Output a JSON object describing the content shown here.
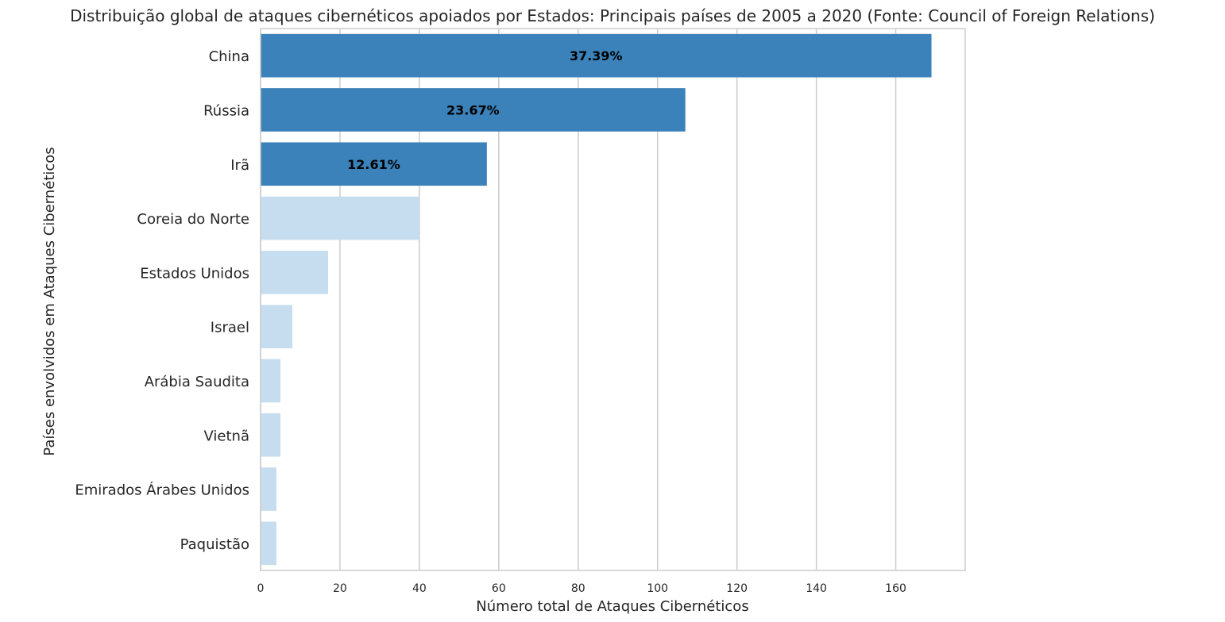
{
  "chart_data": {
    "type": "bar",
    "orientation": "horizontal",
    "title": "Distribuição global de ataques cibernéticos apoiados por Estados: Principais países de 2005 a 2020 (Fonte: Council of Foreign Relations)",
    "xlabel": "Número total de Ataques Cibernéticos",
    "ylabel": "Países envolvidos em Ataques Cibernéticos",
    "categories": [
      "China",
      "Rússia",
      "Irã",
      "Coreia do Norte",
      "Estados Unidos",
      "Israel",
      "Arábia Saudita",
      "Vietnã",
      "Emirados Árabes Unidos",
      "Paquistão"
    ],
    "values": [
      169,
      107,
      57,
      40,
      17,
      8,
      5,
      5,
      4,
      4
    ],
    "data_labels": [
      "37.39%",
      "23.67%",
      "12.61%",
      "",
      "",
      "",
      "",
      "",
      "",
      ""
    ],
    "bar_colors": [
      "#3a82b9",
      "#3a82b9",
      "#3a82b9",
      "#c6ddf0",
      "#c6ddf0",
      "#c6ddf0",
      "#c6ddf0",
      "#c6ddf0",
      "#c6ddf0",
      "#c6ddf0"
    ],
    "xlim": [
      0,
      177.5
    ],
    "xticks": [
      0,
      20,
      40,
      60,
      80,
      100,
      120,
      140,
      160
    ],
    "grid": "vertical",
    "grid_color": "#cccccc",
    "axis_color": "#cccccc",
    "label_color": "#000000",
    "text_color": "#262626"
  }
}
